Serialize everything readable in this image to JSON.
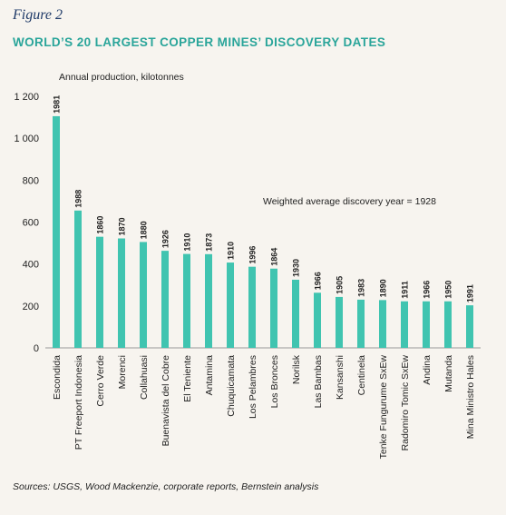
{
  "figure_label": "Figure 2",
  "source": "Sources: USGS, Wood Mackenzie, corporate reports, Bernstein analysis",
  "colors": {
    "bar": "#40c4b0",
    "title": "#2aa59a",
    "figure_label": "#1f3a68"
  },
  "chart_data": {
    "type": "bar",
    "title": "WORLD’S 20 LARGEST COPPER MINES’ DISCOVERY DATES",
    "ylabel": "Annual production, kilotonnes",
    "xlabel": "",
    "ylim": [
      0,
      1200
    ],
    "yticks": [
      0,
      200,
      400,
      600,
      800,
      1000,
      1200
    ],
    "ytick_labels": [
      "0",
      "200",
      "400",
      "600",
      "800",
      "1 000",
      "1 200"
    ],
    "grid": false,
    "annotation": "Weighted average discovery year = 1928",
    "categories": [
      "Escondida",
      "PT Freeport Indonesia",
      "Cerro Verde",
      "Morenci",
      "Collahuasi",
      "Buenavista del Cobre",
      "El Teniente",
      "Antamina",
      "Chuquicamata",
      "Los Pelambres",
      "Los Bronces",
      "Norilsk",
      "Las Bambas",
      "Kansanshi",
      "Centinela",
      "Tenke Fungurume SxEw",
      "Radomiro Tomic SxEw",
      "Andina",
      "Mutanda",
      "Mina Ministro Hales"
    ],
    "values": [
      1105,
      655,
      530,
      522,
      505,
      463,
      448,
      447,
      407,
      387,
      378,
      325,
      263,
      243,
      230,
      228,
      222,
      222,
      222,
      203
    ],
    "data_labels": [
      "1981",
      "1988",
      "1860",
      "1870",
      "1880",
      "1926",
      "1910",
      "1873",
      "1910",
      "1996",
      "1864",
      "1930",
      "1966",
      "1905",
      "1983",
      "1890",
      "1911",
      "1966",
      "1950",
      "1991"
    ]
  }
}
